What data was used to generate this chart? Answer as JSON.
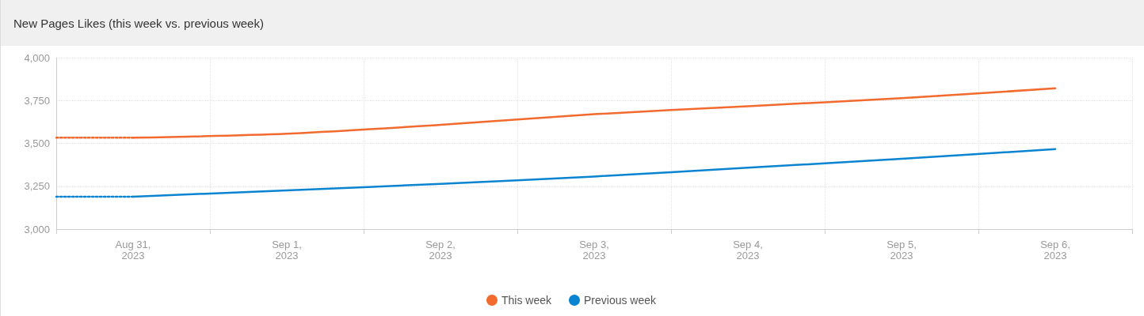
{
  "chart_data": {
    "type": "line",
    "title": "New Pages Likes (this week vs. previous week)",
    "series": [
      {
        "name": "This week",
        "color": "#f26a2e",
        "x": [
          "2023-08-31",
          "2023-09-01",
          "2023-09-02",
          "2023-09-03",
          "2023-09-04",
          "2023-09-05",
          "2023-09-06"
        ],
        "values": [
          3533,
          3557,
          3608,
          3670,
          3717,
          3764,
          3821
        ]
      },
      {
        "name": "Previous week",
        "color": "#0a84d0",
        "x": [
          "2023-08-31",
          "2023-09-01",
          "2023-09-02",
          "2023-09-03",
          "2023-09-04",
          "2023-09-05",
          "2023-09-06"
        ],
        "values": [
          3189,
          3226,
          3264,
          3307,
          3358,
          3410,
          3467
        ]
      },
      {
        "color": "#f26a2e",
        "line_style": "dotted",
        "x": [
          "2023-08-30T12:00",
          "2023-08-31"
        ],
        "values": [
          3533,
          3533
        ]
      },
      {
        "color": "#0a84d0",
        "line_style": "dotted",
        "x": [
          "2023-08-30T12:00",
          "2023-08-31"
        ],
        "values": [
          3189,
          3189
        ]
      }
    ],
    "xlim": [
      "2023-08-30T12:00",
      "2023-09-06T12:00"
    ],
    "xticks": [
      {
        "value": "2023-08-30T12:00",
        "label": null
      },
      {
        "value": "2023-08-31",
        "label": "Aug 31,\n2023"
      },
      {
        "value": "2023-08-31T12:00",
        "label": null
      },
      {
        "value": "2023-09-01",
        "label": "Sep 1,\n2023"
      },
      {
        "value": "2023-09-01T12:00",
        "label": null
      },
      {
        "value": "2023-09-02",
        "label": "Sep 2,\n2023"
      },
      {
        "value": "2023-09-02T12:00",
        "label": null
      },
      {
        "value": "2023-09-03",
        "label": "Sep 3,\n2023"
      },
      {
        "value": "2023-09-03T12:00",
        "label": null
      },
      {
        "value": "2023-09-04",
        "label": "Sep 4,\n2023"
      },
      {
        "value": "2023-09-04T12:00",
        "label": null
      },
      {
        "value": "2023-09-05",
        "label": "Sep 5,\n2023"
      },
      {
        "value": "2023-09-05T12:00",
        "label": null
      },
      {
        "value": "2023-09-06",
        "label": "Sep 6,\n2023"
      },
      {
        "value": "2023-09-06T12:00",
        "label": null
      }
    ],
    "ylim": [
      3000,
      4000
    ],
    "yticks": [
      {
        "value": 3000,
        "label": "3,000"
      },
      {
        "value": 3250,
        "label": "3,250"
      },
      {
        "value": 3500,
        "label": "3,500"
      },
      {
        "value": 3750,
        "label": "3,750"
      },
      {
        "value": 4000,
        "label": "4,000"
      }
    ],
    "grid": true,
    "legend": "bottom",
    "marker": "none",
    "line_style": "solid"
  }
}
